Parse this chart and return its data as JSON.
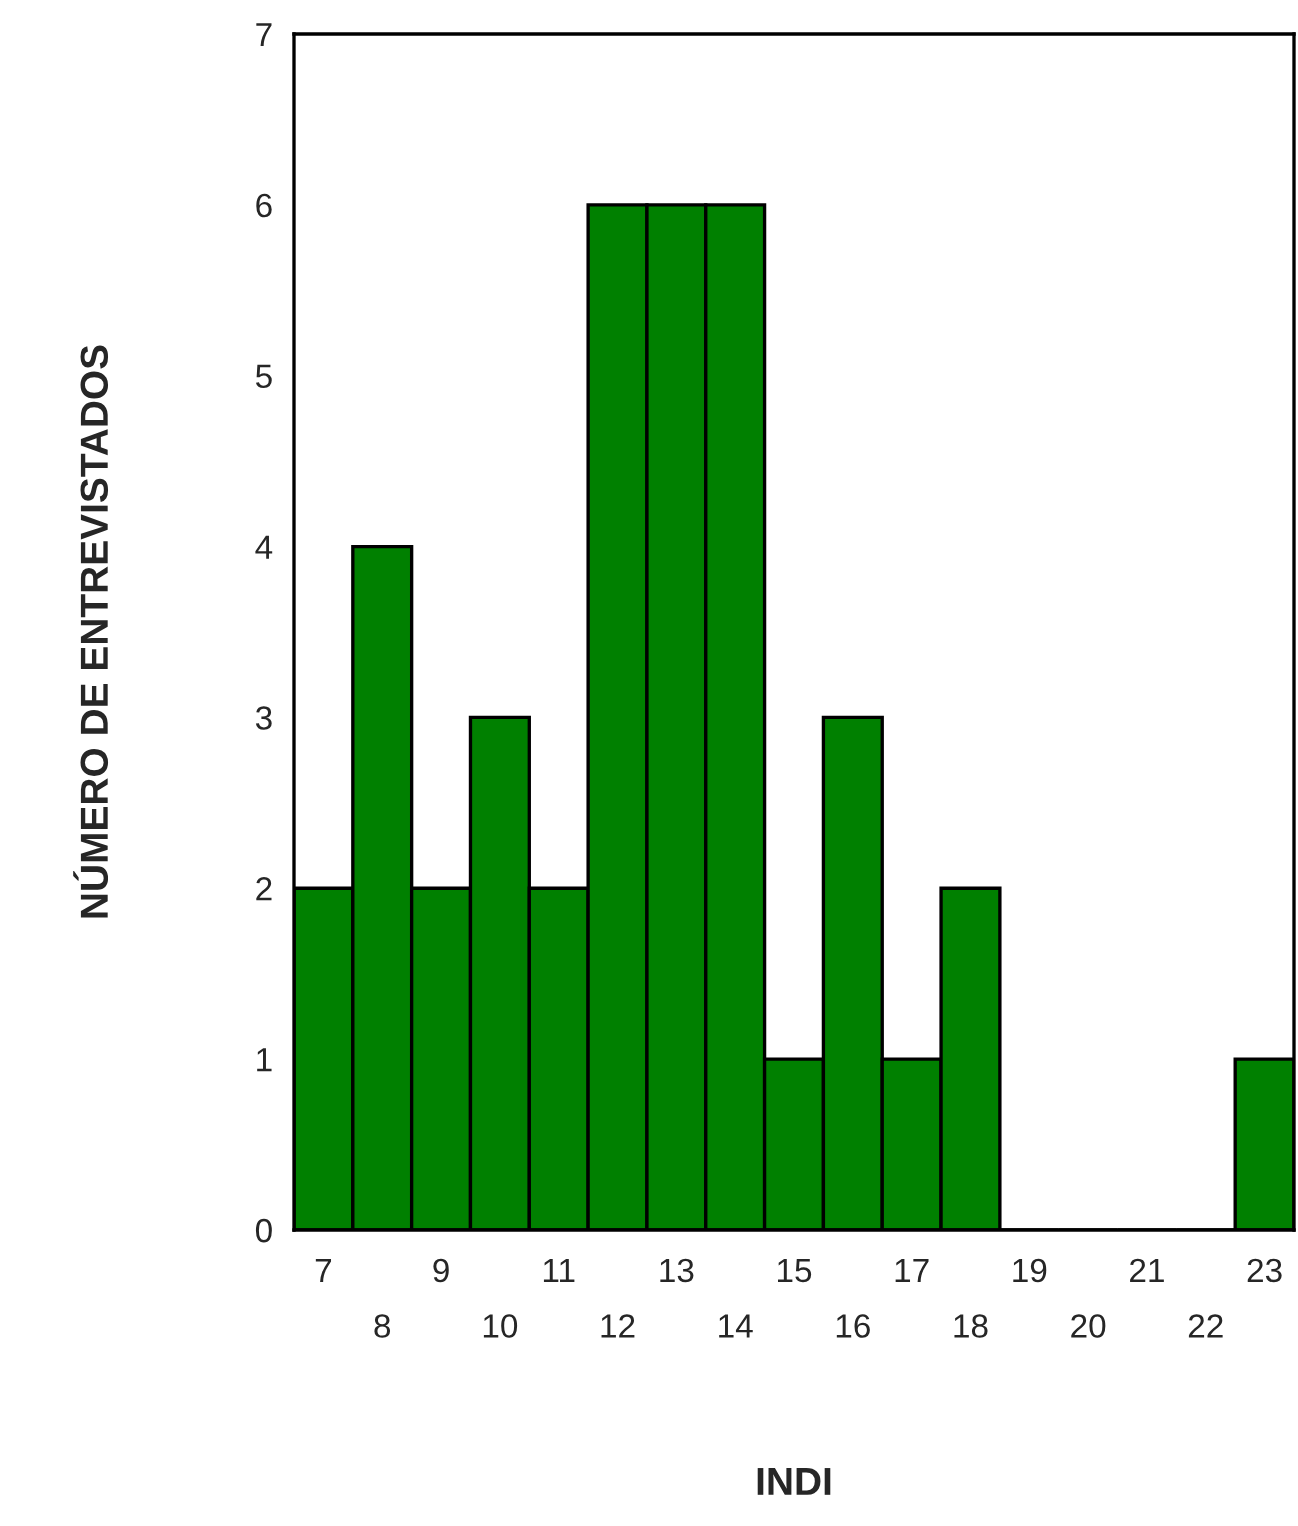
{
  "chart_data": {
    "type": "bar",
    "xlabel": "INDI",
    "ylabel": "NÚMERO DE ENTREVISTADOS",
    "categories": [
      "7",
      "8",
      "9",
      "10",
      "11",
      "12",
      "13",
      "14",
      "15",
      "16",
      "17",
      "18",
      "19",
      "20",
      "21",
      "22",
      "23"
    ],
    "values": [
      2,
      4,
      2,
      3,
      2,
      6,
      6,
      6,
      1,
      3,
      1,
      2,
      0,
      0,
      0,
      0,
      1
    ],
    "color": "#008000",
    "ylim": [
      0,
      7
    ],
    "yticks": [
      0,
      1,
      2,
      3,
      4,
      5,
      6,
      7
    ],
    "grid": false
  }
}
